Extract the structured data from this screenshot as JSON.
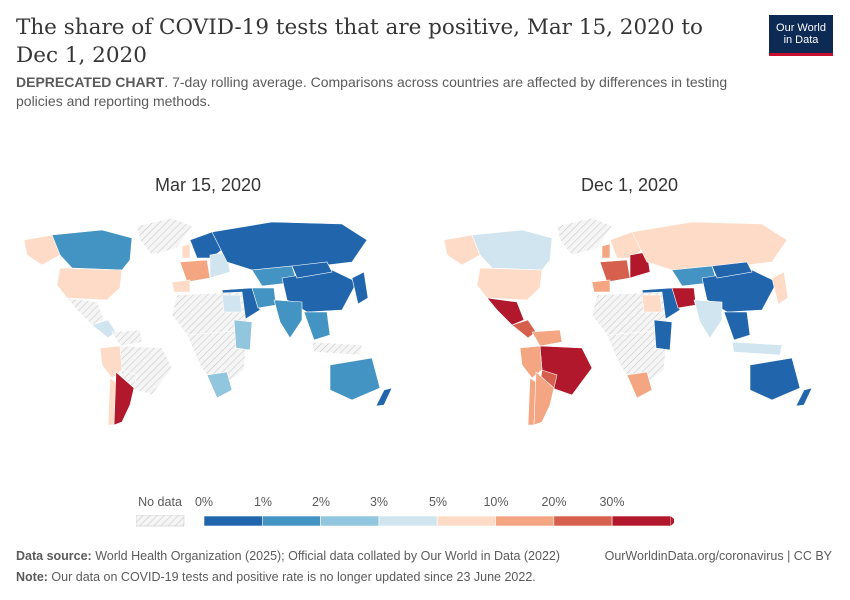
{
  "header": {
    "title": "The share of COVID-19 tests that are positive, Mar 15, 2020 to Dec 1, 2020",
    "subtitle_bold": "DEPRECATED CHART",
    "subtitle_rest": ". 7-day rolling average. Comparisons across countries are affected by differences in testing policies and reporting methods."
  },
  "logo": {
    "line1": "Our World",
    "line2": "in Data"
  },
  "maps": [
    {
      "label": "Mar 15, 2020"
    },
    {
      "label": "Dec 1, 2020"
    }
  ],
  "legend": {
    "no_data_label": "No data",
    "bins": [
      {
        "label": "0%",
        "color": "#2166ac"
      },
      {
        "label": "1%",
        "color": "#4393c3"
      },
      {
        "label": "2%",
        "color": "#92c5de"
      },
      {
        "label": "3%",
        "color": "#d1e5f0"
      },
      {
        "label": "5%",
        "color": "#fddbc7"
      },
      {
        "label": "10%",
        "color": "#f4a582"
      },
      {
        "label": "20%",
        "color": "#d6604d"
      },
      {
        "label": "30%",
        "color": "#b2182b"
      }
    ]
  },
  "footer": {
    "source_bold": "Data source:",
    "source_text": " World Health Organization (2025); Official data collated by Our World in Data (2022)",
    "link": "OurWorldinData.org/coronavirus | CC BY",
    "note_bold": "Note:",
    "note_text": " Our data on COVID-19 tests and positive rate is no longer updated since 23 June 2022."
  }
}
